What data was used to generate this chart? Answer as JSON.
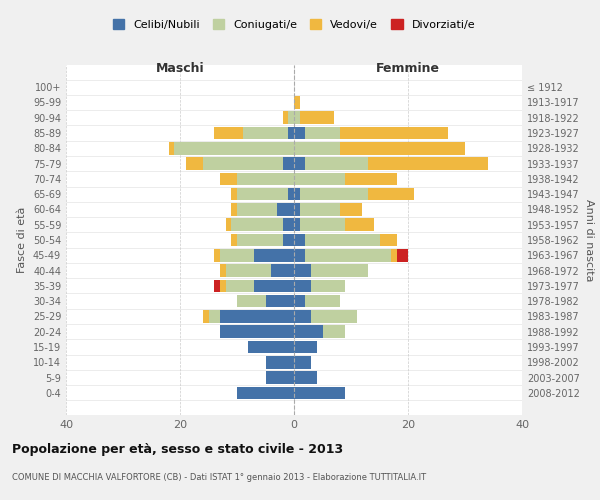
{
  "age_groups": [
    "0-4",
    "5-9",
    "10-14",
    "15-19",
    "20-24",
    "25-29",
    "30-34",
    "35-39",
    "40-44",
    "45-49",
    "50-54",
    "55-59",
    "60-64",
    "65-69",
    "70-74",
    "75-79",
    "80-84",
    "85-89",
    "90-94",
    "95-99",
    "100+"
  ],
  "birth_years": [
    "2008-2012",
    "2003-2007",
    "1998-2002",
    "1993-1997",
    "1988-1992",
    "1983-1987",
    "1978-1982",
    "1973-1977",
    "1968-1972",
    "1963-1967",
    "1958-1962",
    "1953-1957",
    "1948-1952",
    "1943-1947",
    "1938-1942",
    "1933-1937",
    "1928-1932",
    "1923-1927",
    "1918-1922",
    "1913-1917",
    "≤ 1912"
  ],
  "maschi_celibi": [
    10,
    5,
    5,
    8,
    13,
    13,
    5,
    7,
    4,
    7,
    2,
    2,
    3,
    1,
    0,
    2,
    0,
    1,
    0,
    0,
    0
  ],
  "maschi_coniugati": [
    0,
    0,
    0,
    0,
    0,
    2,
    5,
    5,
    8,
    6,
    8,
    9,
    7,
    9,
    10,
    14,
    21,
    8,
    1,
    0,
    0
  ],
  "maschi_vedovi": [
    0,
    0,
    0,
    0,
    0,
    1,
    0,
    1,
    1,
    1,
    1,
    1,
    1,
    1,
    3,
    3,
    1,
    5,
    1,
    0,
    0
  ],
  "maschi_divorziati": [
    0,
    0,
    0,
    0,
    0,
    0,
    0,
    1,
    0,
    0,
    0,
    0,
    0,
    0,
    0,
    0,
    0,
    0,
    0,
    0,
    0
  ],
  "femmine_celibi": [
    9,
    4,
    3,
    4,
    5,
    3,
    2,
    3,
    3,
    2,
    2,
    1,
    1,
    1,
    0,
    2,
    0,
    2,
    0,
    0,
    0
  ],
  "femmine_coniugati": [
    0,
    0,
    0,
    0,
    4,
    8,
    6,
    6,
    10,
    15,
    13,
    8,
    7,
    12,
    9,
    11,
    8,
    6,
    1,
    0,
    0
  ],
  "femmine_vedovi": [
    0,
    0,
    0,
    0,
    0,
    0,
    0,
    0,
    0,
    1,
    3,
    5,
    4,
    8,
    9,
    21,
    22,
    19,
    6,
    1,
    0
  ],
  "femmine_divorziati": [
    0,
    0,
    0,
    0,
    0,
    0,
    0,
    0,
    0,
    2,
    0,
    0,
    0,
    0,
    0,
    0,
    0,
    0,
    0,
    0,
    0
  ],
  "color_celibi": "#4472a8",
  "color_coniugati": "#bfd0a0",
  "color_vedovi": "#f0b840",
  "color_divorziati": "#cc2222",
  "title": "Popolazione per età, sesso e stato civile - 2013",
  "subtitle": "COMUNE DI MACCHIA VALFORTORE (CB) - Dati ISTAT 1° gennaio 2013 - Elaborazione TUTTITALIA.IT",
  "ylabel_left": "Fasce di età",
  "ylabel_right": "Anni di nascita",
  "xlabel_left": "Maschi",
  "xlabel_right": "Femmine",
  "xlim": 40,
  "background_color": "#f0f0f0",
  "plot_bg_color": "#ffffff"
}
